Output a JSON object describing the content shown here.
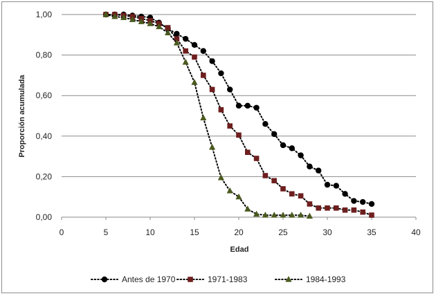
{
  "chart_data": {
    "type": "line",
    "title": "",
    "xlabel": "Edad",
    "ylabel": "Proporción acumulada",
    "xlim": [
      0,
      40
    ],
    "ylim": [
      0,
      1
    ],
    "x_ticks": [
      "0",
      "5",
      "10",
      "15",
      "20",
      "25",
      "30",
      "35",
      "40"
    ],
    "y_ticks": [
      "0,00",
      "0,20",
      "0,40",
      "0,60",
      "0,80",
      "1,00"
    ],
    "grid": "horizontal",
    "legend_position": "bottom",
    "series": [
      {
        "name": "Antes de 1970",
        "marker": "circle",
        "color": "#000000",
        "x": [
          5,
          6,
          7,
          8,
          9,
          10,
          11,
          12,
          13,
          14,
          15,
          16,
          17,
          18,
          19,
          20,
          21,
          22,
          23,
          24,
          25,
          26,
          27,
          28,
          29,
          30,
          31,
          32,
          33,
          34,
          35
        ],
        "y": [
          1.0,
          1.0,
          1.0,
          0.995,
          0.99,
          0.985,
          0.96,
          0.93,
          0.905,
          0.88,
          0.85,
          0.82,
          0.77,
          0.71,
          0.63,
          0.55,
          0.55,
          0.54,
          0.46,
          0.41,
          0.355,
          0.34,
          0.305,
          0.25,
          0.23,
          0.16,
          0.155,
          0.115,
          0.08,
          0.075,
          0.065
        ]
      },
      {
        "name": "1971-1983",
        "marker": "square",
        "color": "#6e1e1e",
        "x": [
          5,
          6,
          7,
          8,
          9,
          10,
          11,
          12,
          13,
          14,
          15,
          16,
          17,
          18,
          19,
          20,
          21,
          22,
          23,
          24,
          25,
          26,
          27,
          28,
          29,
          30,
          31,
          32,
          33,
          34,
          35
        ],
        "y": [
          1.0,
          1.0,
          0.995,
          0.99,
          0.98,
          0.97,
          0.955,
          0.935,
          0.88,
          0.82,
          0.79,
          0.7,
          0.63,
          0.53,
          0.45,
          0.405,
          0.32,
          0.29,
          0.205,
          0.18,
          0.14,
          0.115,
          0.105,
          0.065,
          0.045,
          0.045,
          0.045,
          0.035,
          0.035,
          0.025,
          0.01
        ]
      },
      {
        "name": "1984-1993",
        "marker": "triangle",
        "color": "#4a5a1e",
        "x": [
          5,
          6,
          7,
          8,
          9,
          10,
          11,
          12,
          13,
          14,
          15,
          16,
          17,
          18,
          19,
          20,
          21,
          22,
          23,
          24,
          25,
          26,
          27,
          28
        ],
        "y": [
          1.0,
          0.99,
          0.985,
          0.975,
          0.965,
          0.955,
          0.94,
          0.91,
          0.86,
          0.765,
          0.665,
          0.49,
          0.345,
          0.195,
          0.13,
          0.1,
          0.04,
          0.015,
          0.01,
          0.01,
          0.01,
          0.01,
          0.01,
          0.005
        ]
      }
    ]
  }
}
